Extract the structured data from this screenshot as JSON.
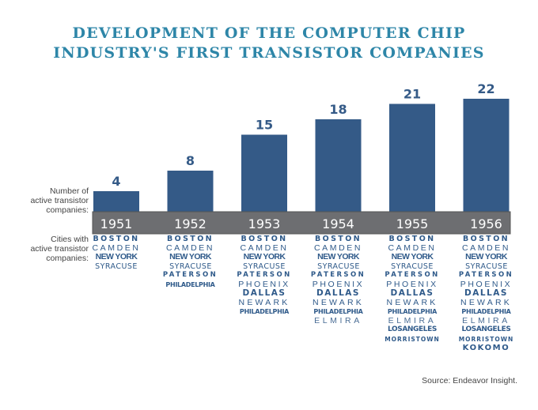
{
  "chart_data": {
    "type": "bar",
    "title": "DEVELOPMENT OF THE COMPUTER CHIP INDUSTRY'S FIRST TRANSISTOR COMPANIES",
    "title_lines": [
      "DEVELOPMENT OF THE COMPUTER CHIP",
      "INDUSTRY'S FIRST TRANSISTOR COMPANIES"
    ],
    "categories": [
      "1951",
      "1952",
      "1953",
      "1954",
      "1955",
      "1956"
    ],
    "values": [
      4,
      8,
      15,
      18,
      21,
      22
    ],
    "data_labels": [
      "4",
      "8",
      "15",
      "18",
      "21",
      "22"
    ],
    "ylabel": "Number of active transistor companies:",
    "ylim": [
      0,
      22
    ],
    "grid": false,
    "legend": "none",
    "cities_label": "Cities with active transistor companies:",
    "cities": [
      [
        "BOSTON",
        "CAMDEN",
        "NEW YORK",
        "SYRACUSE"
      ],
      [
        "BOSTON",
        "CAMDEN",
        "NEW YORK",
        "SYRACUSE",
        "PATERSON",
        "PHILADELPHIA"
      ],
      [
        "BOSTON",
        "CAMDEN",
        "NEW YORK",
        "SYRACUSE",
        "PATERSON",
        "PHOENIX",
        "DALLAS",
        "NEWARK",
        "PHILADELPHIA"
      ],
      [
        "BOSTON",
        "CAMDEN",
        "NEW YORK",
        "SYRACUSE",
        "PATERSON",
        "PHOENIX",
        "DALLAS",
        "NEWARK",
        "PHILADELPHIA",
        "ELMIRA"
      ],
      [
        "BOSTON",
        "CAMDEN",
        "NEW YORK",
        "SYRACUSE",
        "PATERSON",
        "PHOENIX",
        "DALLAS",
        "NEWARK",
        "PHILADELPHIA",
        "ELMIRA",
        "LOSANGELES",
        "MORRISTOWN"
      ],
      [
        "BOSTON",
        "CAMDEN",
        "NEW YORK",
        "SYRACUSE",
        "PATERSON",
        "PHOENIX",
        "DALLAS",
        "NEWARK",
        "PHILADELPHIA",
        "ELMIRA",
        "LOSANGELES",
        "MORRISTOWN",
        "KOKOMO"
      ]
    ],
    "source": "Source: Endeavor Insight."
  },
  "labels": {
    "title_line1": "DEVELOPMENT OF THE COMPUTER CHIP",
    "title_line2": "INDUSTRY'S FIRST TRANSISTOR COMPANIES",
    "count_label_lines": [
      "Number of",
      "active transistor",
      "companies:"
    ],
    "cities_label_lines": [
      "Cities with",
      "active transistor",
      "companies:"
    ],
    "source": "Source: Endeavor Insight."
  },
  "colors": {
    "title": "#2e86a8",
    "bar": "#345a87",
    "year_band": "#6d6e71",
    "year_text": "#ffffff",
    "city_text": "#2f5a8a"
  }
}
